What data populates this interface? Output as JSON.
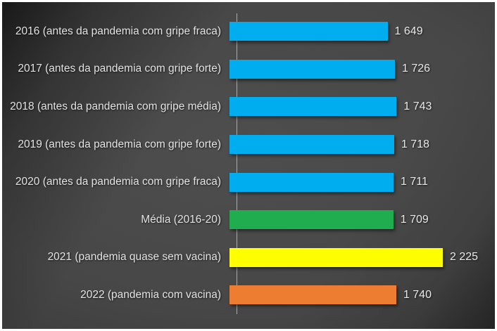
{
  "frame": {
    "border_color": "#FFFFFF",
    "background_center": "#4E4E4E",
    "background_edge": "#1A1A1A"
  },
  "chart_data": {
    "type": "bar",
    "orientation": "horizontal",
    "title": "",
    "xlabel": "",
    "ylabel": "",
    "legend": "none",
    "grid": false,
    "xlim": [
      0,
      2400
    ],
    "axis_line_color": "#ABABAB",
    "text_color": "#E3E3E3",
    "categories": [
      "2016 (antes da pandemia com gripe fraca)",
      "2017 (antes da pandemia com gripe forte)",
      "2018 (antes da pandemia com gripe média)",
      "2019 (antes da pandemia com gripe forte)",
      "2020 (antes da pandemia com gripe fraca)",
      "Média (2016-20)",
      "2021 (pandemia quase sem vacina)",
      "2022 (pandemia com vacina)"
    ],
    "values": [
      1649,
      1726,
      1743,
      1718,
      1711,
      1709,
      2225,
      1740
    ],
    "value_labels": [
      "1 649",
      "1 726",
      "1 743",
      "1 718",
      "1 711",
      "1 709",
      "2 225",
      "1 740"
    ],
    "bar_colors": [
      "#00AEF0",
      "#00AEF0",
      "#00AEF0",
      "#00AEF0",
      "#00AEF0",
      "#1FAD50",
      "#FFFF00",
      "#ED7D31"
    ]
  }
}
